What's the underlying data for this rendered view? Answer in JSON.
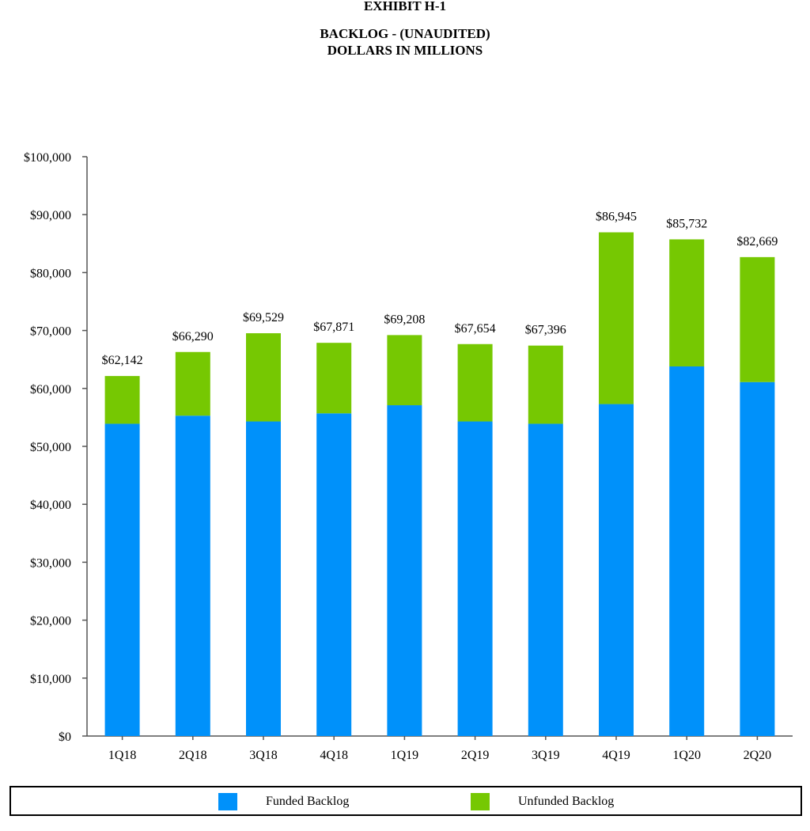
{
  "header": {
    "exhibit": "EXHIBIT H-1",
    "title": "BACKLOG - (UNAUDITED)",
    "subtitle": "DOLLARS IN MILLIONS"
  },
  "chart_data": {
    "type": "bar",
    "stacked": true,
    "categories": [
      "1Q18",
      "2Q18",
      "3Q18",
      "4Q18",
      "1Q19",
      "2Q19",
      "3Q19",
      "4Q19",
      "1Q20",
      "2Q20"
    ],
    "series": [
      {
        "name": "Funded Backlog",
        "color": "#0091FA",
        "values": [
          53900,
          55300,
          54300,
          55700,
          57100,
          54300,
          53900,
          57300,
          63800,
          61100
        ]
      },
      {
        "name": "Unfunded Backlog",
        "color": "#76C802",
        "values": [
          8242,
          10990,
          15229,
          12171,
          12108,
          13354,
          13496,
          29645,
          21932,
          21569
        ]
      }
    ],
    "totals": [
      "$62,142",
      "$66,290",
      "$69,529",
      "$67,871",
      "$69,208",
      "$67,654",
      "$67,396",
      "$86,945",
      "$85,732",
      "$82,669"
    ],
    "yticks": [
      "$0",
      "$10,000",
      "$20,000",
      "$30,000",
      "$40,000",
      "$50,000",
      "$60,000",
      "$70,000",
      "$80,000",
      "$90,000",
      "$100,000"
    ],
    "ylim": [
      0,
      100000
    ],
    "xlabel": "",
    "ylabel": "",
    "grid": false,
    "legend_position": "bottom"
  }
}
